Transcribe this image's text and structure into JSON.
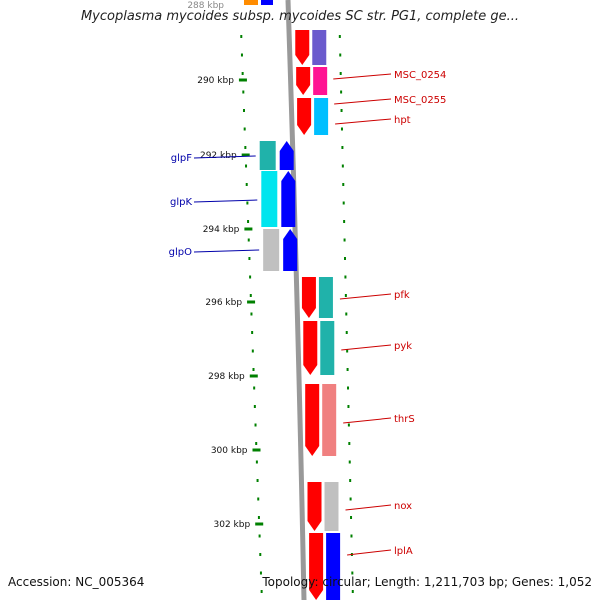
{
  "title": "Mycoplasma mycoides subsp. mycoides SC str. PG1, complete ge...",
  "footer": {
    "accession": "Accession: NC_005364",
    "topology": "Topology: circular; Length: 1,211,703 bp; Genes: 1,052"
  },
  "scale_labels": [
    "290 kbp",
    "292 kbp",
    "294 kbp",
    "296 kbp",
    "298 kbp",
    "300 kbp",
    "302 kbp"
  ],
  "partial_top_label": "288 kbp",
  "genes": [
    {
      "label": "MSC_0254",
      "strand": "forward",
      "color": "#ff0000",
      "cog_color": "#6a5acd"
    },
    {
      "label": "MSC_0255",
      "strand": "forward",
      "color": "#ff0000",
      "cog_color": "#ff1493"
    },
    {
      "label": "hpt",
      "strand": "forward",
      "color": "#ff0000",
      "cog_color": "#00bfff"
    },
    {
      "label": "glpF",
      "strand": "reverse",
      "color": "#0000ff",
      "cog_color": "#20b2aa"
    },
    {
      "label": "glpK",
      "strand": "reverse",
      "color": "#0000ff",
      "cog_color": "#00e5ee"
    },
    {
      "label": "glpO",
      "strand": "reverse",
      "color": "#0000ff",
      "cog_color": "#c0c0c0"
    },
    {
      "label": "pfk",
      "strand": "forward",
      "color": "#ff0000",
      "cog_color": "#20b2aa"
    },
    {
      "label": "pyk",
      "strand": "forward",
      "color": "#ff0000",
      "cog_color": "#20b2aa"
    },
    {
      "label": "thrS",
      "strand": "forward",
      "color": "#ff0000",
      "cog_color": "#f08080"
    },
    {
      "label": "nox",
      "strand": "forward",
      "color": "#ff0000",
      "cog_color": "#c0c0c0"
    },
    {
      "label": "lplA",
      "strand": "forward",
      "color": "#ff0000",
      "cog_color": "#0000ff"
    }
  ],
  "colors": {
    "forward_label": "#cc0000",
    "reverse_label": "#0000aa",
    "tick": "#008000",
    "backbone": "#999999"
  }
}
